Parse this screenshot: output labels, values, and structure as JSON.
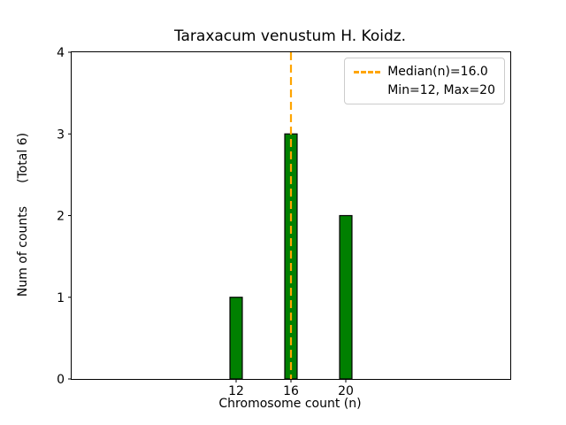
{
  "chart_data": {
    "type": "bar",
    "title": "Taraxacum venustum H. Koidz.",
    "xlabel": "Chromosome count (n)",
    "ylabel": "Num of counts",
    "ylabel_total": "(Total 6)",
    "categories": [
      12,
      16,
      20
    ],
    "values": [
      1,
      3,
      2
    ],
    "total_counts": 6,
    "median": 16.0,
    "min": 12,
    "max": 20,
    "legend_entries": [
      "Median(n)=16.0",
      "Min=12, Max=20"
    ],
    "legend_position": "upper right",
    "bar_color": "#008000",
    "bar_edge_color": "#000000",
    "bar_width": 0.9,
    "median_line_color": "#FFA500",
    "median_line_style": "dashed",
    "xlim": [
      0,
      32
    ],
    "ylim": [
      0,
      4
    ],
    "xticks": [
      12,
      16,
      20
    ],
    "yticks": [
      0,
      1,
      2,
      3,
      4
    ],
    "grid": false
  }
}
